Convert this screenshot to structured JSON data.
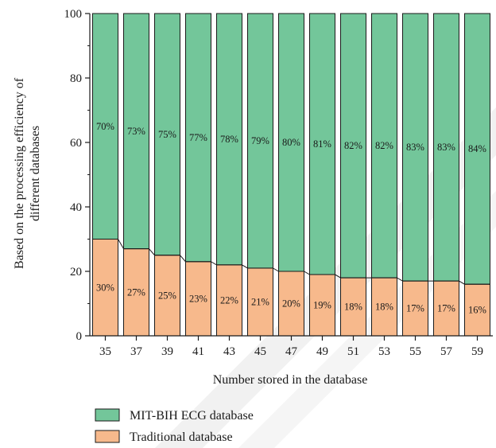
{
  "chart_data": {
    "type": "bar",
    "stacked": true,
    "categories": [
      "35",
      "37",
      "39",
      "41",
      "43",
      "45",
      "47",
      "49",
      "51",
      "53",
      "55",
      "57",
      "59"
    ],
    "series": [
      {
        "name": "Traditional database",
        "color": "#f7b98c",
        "values": [
          30,
          27,
          25,
          23,
          22,
          21,
          20,
          19,
          18,
          18,
          17,
          17,
          16
        ],
        "labels": [
          "30%",
          "27%",
          "25%",
          "23%",
          "22%",
          "21%",
          "20%",
          "19%",
          "18%",
          "18%",
          "17%",
          "17%",
          "16%"
        ]
      },
      {
        "name": "MIT-BIH ECG database",
        "color": "#73c69a",
        "values": [
          70,
          73,
          75,
          77,
          78,
          79,
          80,
          81,
          82,
          82,
          83,
          83,
          84
        ],
        "labels": [
          "70%",
          "73%",
          "75%",
          "77%",
          "78%",
          "79%",
          "80%",
          "81%",
          "82%",
          "82%",
          "83%",
          "83%",
          "84%"
        ]
      }
    ],
    "xlabel": "Number stored in the database",
    "ylabel_lines": [
      "Based on the processing efficiency of",
      "different databases"
    ],
    "ylim": [
      0,
      100
    ],
    "yticks": [
      "0",
      "20",
      "40",
      "60",
      "80",
      "100"
    ],
    "legend": {
      "position": "bottom-left",
      "items": [
        "MIT-BIH ECG database",
        "Traditional database"
      ]
    },
    "grid": false
  },
  "colors": {
    "traditional": "#f7b98c",
    "mitbih": "#73c69a",
    "watermark": "#e6e6e6"
  }
}
